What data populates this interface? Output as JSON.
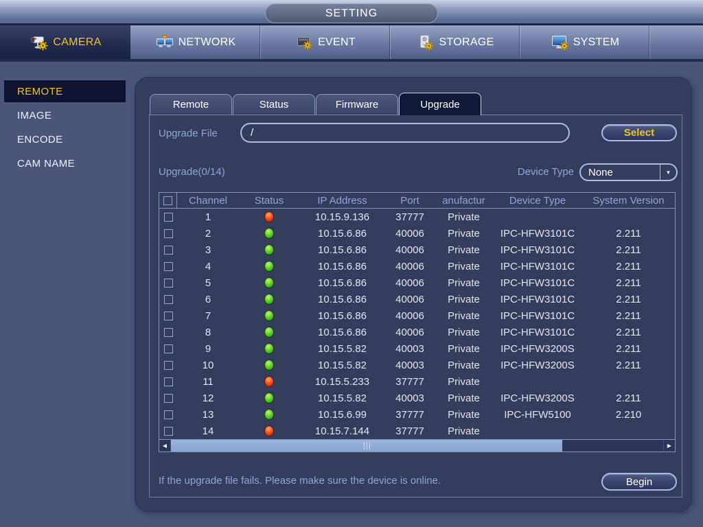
{
  "window": {
    "title": "SETTING"
  },
  "top_tabs": [
    {
      "label": "CAMERA",
      "active": true
    },
    {
      "label": "NETWORK",
      "active": false
    },
    {
      "label": "EVENT",
      "active": false
    },
    {
      "label": "STORAGE",
      "active": false
    },
    {
      "label": "SYSTEM",
      "active": false
    }
  ],
  "sidebar": {
    "items": [
      {
        "label": "REMOTE",
        "active": true
      },
      {
        "label": "IMAGE",
        "active": false
      },
      {
        "label": "ENCODE",
        "active": false
      },
      {
        "label": "CAM NAME",
        "active": false
      }
    ]
  },
  "panel": {
    "tabs": [
      {
        "label": "Remote",
        "active": false
      },
      {
        "label": "Status",
        "active": false
      },
      {
        "label": "Firmware",
        "active": false
      },
      {
        "label": "Upgrade",
        "active": true
      }
    ],
    "upgrade_file": {
      "label": "Upgrade File",
      "value": "/",
      "select_label": "Select"
    },
    "upgrade_count_label": "Upgrade(0/14)",
    "device_type": {
      "label": "Device Type",
      "value": "None"
    },
    "table": {
      "headers": [
        "",
        "Channel",
        "Status",
        "IP Address",
        "Port",
        "anufactur",
        "Device Type",
        "System Version"
      ],
      "rows": [
        {
          "channel": "1",
          "status": "offline",
          "ip": "10.15.9.136",
          "port": "37777",
          "manufacturer": "Private",
          "device_type": "",
          "system_version": ""
        },
        {
          "channel": "2",
          "status": "online",
          "ip": "10.15.6.86",
          "port": "40006",
          "manufacturer": "Private",
          "device_type": "IPC-HFW3101C",
          "system_version": "2.211"
        },
        {
          "channel": "3",
          "status": "online",
          "ip": "10.15.6.86",
          "port": "40006",
          "manufacturer": "Private",
          "device_type": "IPC-HFW3101C",
          "system_version": "2.211"
        },
        {
          "channel": "4",
          "status": "online",
          "ip": "10.15.6.86",
          "port": "40006",
          "manufacturer": "Private",
          "device_type": "IPC-HFW3101C",
          "system_version": "2.211"
        },
        {
          "channel": "5",
          "status": "online",
          "ip": "10.15.6.86",
          "port": "40006",
          "manufacturer": "Private",
          "device_type": "IPC-HFW3101C",
          "system_version": "2.211"
        },
        {
          "channel": "6",
          "status": "online",
          "ip": "10.15.6.86",
          "port": "40006",
          "manufacturer": "Private",
          "device_type": "IPC-HFW3101C",
          "system_version": "2.211"
        },
        {
          "channel": "7",
          "status": "online",
          "ip": "10.15.6.86",
          "port": "40006",
          "manufacturer": "Private",
          "device_type": "IPC-HFW3101C",
          "system_version": "2.211"
        },
        {
          "channel": "8",
          "status": "online",
          "ip": "10.15.6.86",
          "port": "40006",
          "manufacturer": "Private",
          "device_type": "IPC-HFW3101C",
          "system_version": "2.211"
        },
        {
          "channel": "9",
          "status": "online",
          "ip": "10.15.5.82",
          "port": "40003",
          "manufacturer": "Private",
          "device_type": "IPC-HFW3200S",
          "system_version": "2.211"
        },
        {
          "channel": "10",
          "status": "online",
          "ip": "10.15.5.82",
          "port": "40003",
          "manufacturer": "Private",
          "device_type": "IPC-HFW3200S",
          "system_version": "2.211"
        },
        {
          "channel": "11",
          "status": "offline",
          "ip": "10.15.5.233",
          "port": "37777",
          "manufacturer": "Private",
          "device_type": "",
          "system_version": ""
        },
        {
          "channel": "12",
          "status": "online",
          "ip": "10.15.5.82",
          "port": "40003",
          "manufacturer": "Private",
          "device_type": "IPC-HFW3200S",
          "system_version": "2.211"
        },
        {
          "channel": "13",
          "status": "online",
          "ip": "10.15.6.99",
          "port": "37777",
          "manufacturer": "Private",
          "device_type": "IPC-HFW5100",
          "system_version": "2.210"
        },
        {
          "channel": "14",
          "status": "offline",
          "ip": "10.15.7.144",
          "port": "37777",
          "manufacturer": "Private",
          "device_type": "",
          "system_version": ""
        }
      ]
    },
    "note": "If the upgrade file fails. Please make sure the device is online.",
    "begin_label": "Begin"
  },
  "colors": {
    "accent_yellow": "#f0c42c",
    "label_blue": "#8fa3de",
    "status_online": "#46c31c",
    "status_offline": "#ea3d17",
    "panel_bg": "#353d5c",
    "body_bg": "#4a5578"
  }
}
